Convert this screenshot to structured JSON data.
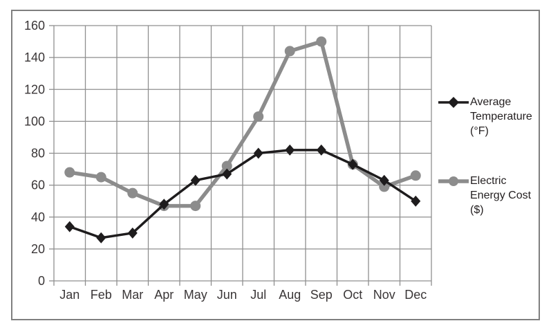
{
  "colors": {
    "frame_border": "#7f7f7f",
    "grid": "#8f8f8f",
    "text": "#3a3637",
    "background": "#ffffff"
  },
  "chart_data": {
    "type": "line",
    "title": "",
    "xlabel": "",
    "ylabel": "",
    "categories": [
      "Jan",
      "Feb",
      "Mar",
      "Apr",
      "May",
      "Jun",
      "Jul",
      "Aug",
      "Sep",
      "Oct",
      "Nov",
      "Dec"
    ],
    "series": [
      {
        "id": "average-temperature",
        "name": "Average Temperature (°F)",
        "label_lines": [
          "Average",
          "Temperature",
          "(°F)"
        ],
        "color": "#1e1c1d",
        "marker": "diamond",
        "line_width": 3.5,
        "values": [
          34,
          27,
          30,
          48,
          63,
          67,
          80,
          82,
          82,
          73,
          63,
          50
        ]
      },
      {
        "id": "electric-energy-cost",
        "name": "Electric Energy Cost ($)",
        "label_lines": [
          "Electric",
          "Energy Cost",
          "($)"
        ],
        "color": "#8c8c8c",
        "marker": "circle",
        "line_width": 5.5,
        "values": [
          68,
          65,
          55,
          47,
          47,
          72,
          103,
          144,
          150,
          73,
          59,
          66
        ]
      }
    ],
    "ylim": [
      0,
      160
    ],
    "yticks": [
      0,
      20,
      40,
      60,
      80,
      100,
      120,
      140,
      160
    ],
    "grid": "on",
    "legend_position": "right"
  }
}
